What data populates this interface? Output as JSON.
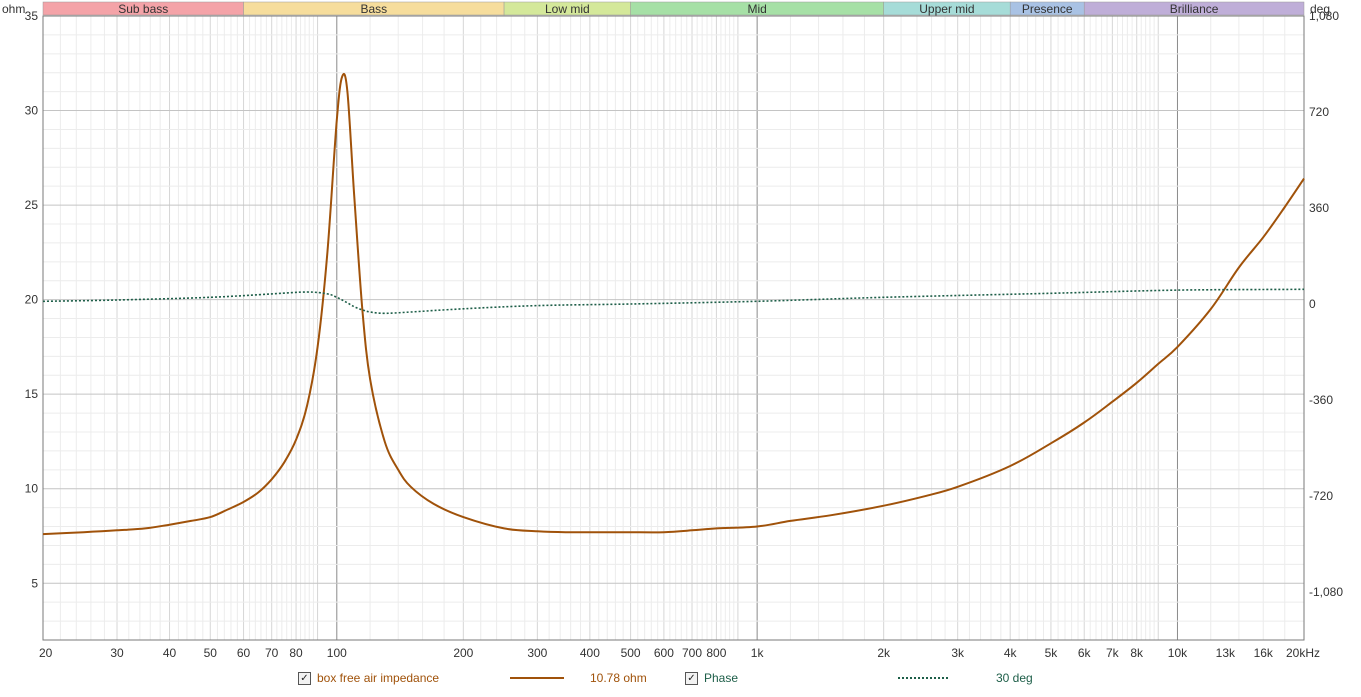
{
  "chart_data": {
    "type": "line",
    "title": "",
    "left_axis": {
      "label": "ohm",
      "ylim": [
        2,
        35
      ],
      "ticks": [
        5,
        10,
        15,
        20,
        25,
        30,
        35
      ]
    },
    "right_axis": {
      "label": "deg",
      "ylim": [
        -1260,
        1080
      ],
      "ticks": [
        -1080,
        -720,
        -360,
        0,
        360,
        720,
        1080
      ],
      "tick_labels": [
        "-1,080",
        "-720",
        "-360",
        "0",
        "360",
        "720",
        "1,080"
      ]
    },
    "x_axis": {
      "scale": "log",
      "xlim": [
        20,
        20000
      ],
      "unit": "kHz",
      "ticks": [
        {
          "v": 20,
          "t": "20"
        },
        {
          "v": 30,
          "t": "30"
        },
        {
          "v": 40,
          "t": "40"
        },
        {
          "v": 50,
          "t": "50"
        },
        {
          "v": 60,
          "t": "60"
        },
        {
          "v": 70,
          "t": "70"
        },
        {
          "v": 80,
          "t": "80"
        },
        {
          "v": 100,
          "t": "100"
        },
        {
          "v": 200,
          "t": "200"
        },
        {
          "v": 300,
          "t": "300"
        },
        {
          "v": 400,
          "t": "400"
        },
        {
          "v": 500,
          "t": "500"
        },
        {
          "v": 600,
          "t": "600"
        },
        {
          "v": 700,
          "t": "700"
        },
        {
          "v": 800,
          "t": "800"
        },
        {
          "v": 1000,
          "t": "1k"
        },
        {
          "v": 2000,
          "t": "2k"
        },
        {
          "v": 3000,
          "t": "3k"
        },
        {
          "v": 4000,
          "t": "4k"
        },
        {
          "v": 5000,
          "t": "5k"
        },
        {
          "v": 6000,
          "t": "6k"
        },
        {
          "v": 7000,
          "t": "7k"
        },
        {
          "v": 8000,
          "t": "8k"
        },
        {
          "v": 10000,
          "t": "10k"
        },
        {
          "v": 13000,
          "t": "13k",
          "muted": true
        },
        {
          "v": 16000,
          "t": "16k",
          "muted": true
        },
        {
          "v": 20000,
          "t": "20kHz"
        }
      ]
    },
    "bands": [
      {
        "label": "Sub bass",
        "from": 20,
        "to": 60,
        "color": "#f4a3a8"
      },
      {
        "label": "Bass",
        "from": 60,
        "to": 250,
        "color": "#f6dd9c"
      },
      {
        "label": "Low mid",
        "from": 250,
        "to": 500,
        "color": "#d4e89a"
      },
      {
        "label": "Mid",
        "from": 500,
        "to": 2000,
        "color": "#a6e0a6"
      },
      {
        "label": "Upper mid",
        "from": 2000,
        "to": 4000,
        "color": "#a6dcd8"
      },
      {
        "label": "Presence",
        "from": 4000,
        "to": 6000,
        "color": "#a9c2e4"
      },
      {
        "label": "Brilliance",
        "from": 6000,
        "to": 20000,
        "color": "#bfaed8"
      }
    ],
    "series": [
      {
        "name": "box free air impedance",
        "axis": "left",
        "color": "#a0520a",
        "x": [
          20,
          25,
          30,
          35,
          40,
          45,
          50,
          55,
          60,
          65,
          70,
          75,
          80,
          85,
          90,
          95,
          100,
          103,
          106,
          110,
          115,
          120,
          130,
          140,
          150,
          170,
          200,
          250,
          300,
          350,
          400,
          450,
          500,
          600,
          700,
          800,
          1000,
          1200,
          1500,
          2000,
          2500,
          3000,
          4000,
          5000,
          6000,
          7000,
          8000,
          9000,
          10000,
          12000,
          14000,
          16000,
          18000,
          20000
        ],
        "values": [
          7.6,
          7.7,
          7.8,
          7.9,
          8.1,
          8.3,
          8.5,
          8.9,
          9.3,
          9.8,
          10.5,
          11.4,
          12.6,
          14.4,
          17.5,
          22.5,
          29.5,
          31.8,
          31.0,
          25.5,
          19.5,
          15.8,
          12.5,
          11.0,
          10.1,
          9.2,
          8.5,
          7.9,
          7.75,
          7.7,
          7.7,
          7.7,
          7.7,
          7.7,
          7.8,
          7.9,
          8.0,
          8.3,
          8.6,
          9.1,
          9.6,
          10.1,
          11.2,
          12.4,
          13.5,
          14.6,
          15.6,
          16.6,
          17.5,
          19.5,
          21.7,
          23.3,
          24.9,
          26.4
        ]
      },
      {
        "name": "Phase",
        "axis": "right",
        "color": "#1d5e48",
        "x": [
          20,
          30,
          50,
          70,
          85,
          95,
          100,
          105,
          110,
          115,
          120,
          130,
          150,
          200,
          300,
          500,
          1000,
          2000,
          5000,
          10000,
          20000
        ],
        "values": [
          10,
          15,
          25,
          38,
          45,
          38,
          25,
          8,
          -10,
          -22,
          -30,
          -35,
          -30,
          -18,
          -6,
          0,
          10,
          25,
          40,
          52,
          55
        ]
      }
    ]
  },
  "legend": {
    "series1_name": "box free air impedance",
    "series1_value": "10.78 ohm",
    "series2_name": "Phase",
    "series2_value": "30 deg",
    "check": "✓"
  }
}
